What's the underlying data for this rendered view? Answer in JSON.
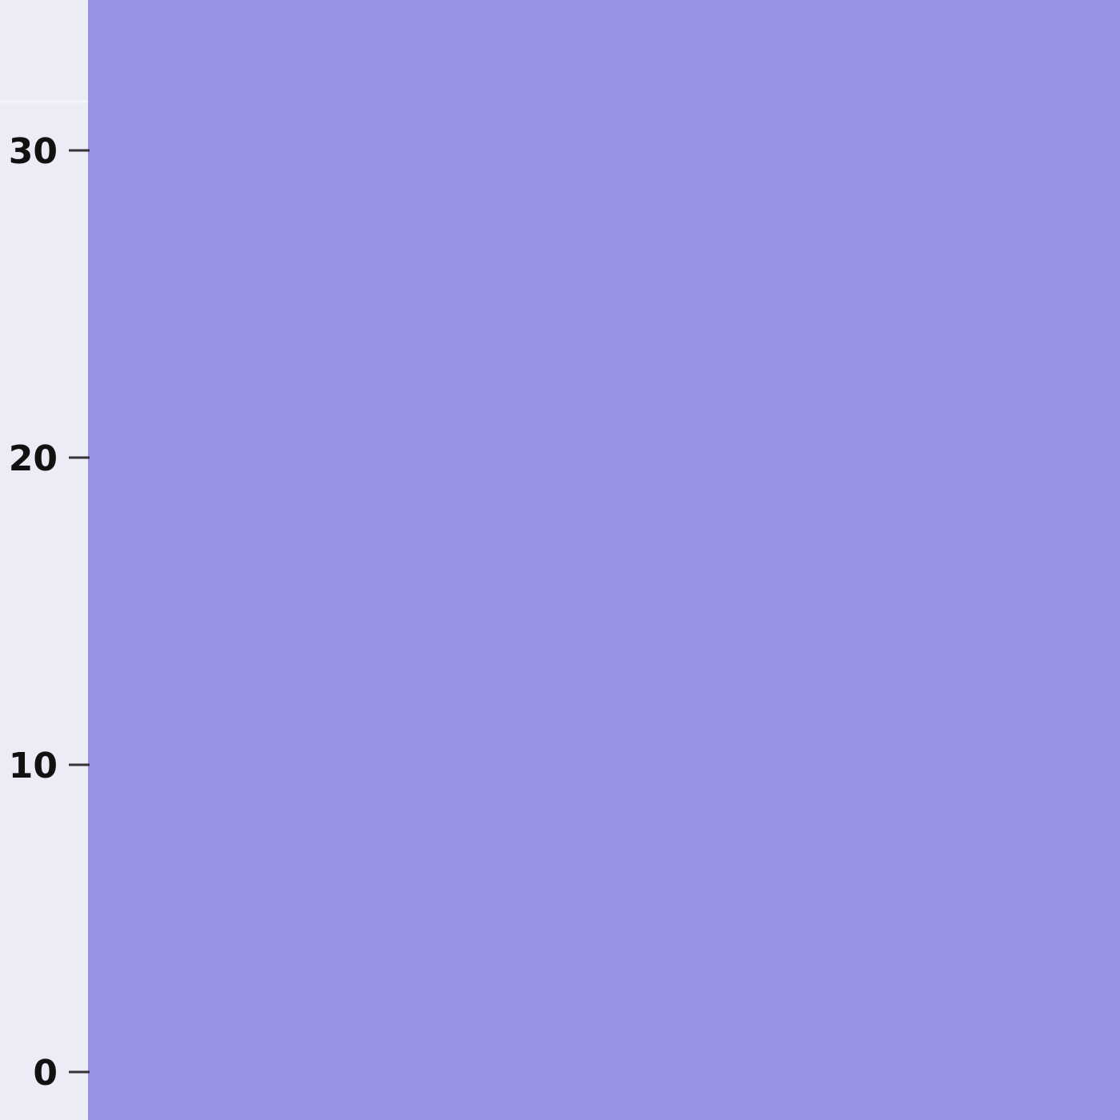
{
  "chart_data": {
    "type": "area",
    "title": "",
    "xlabel": "",
    "ylabel": "",
    "yticks": [
      "0",
      "10",
      "20",
      "30"
    ],
    "ytick_values": [
      0,
      10,
      20,
      30
    ],
    "ylim": [
      -1.5,
      35
    ],
    "series": [
      {
        "values": [
          35,
          35
        ]
      }
    ],
    "grid": false,
    "legend": "none",
    "colors": {
      "fill": "#9792e3",
      "background": "#ececf6",
      "tick": "#333333"
    }
  }
}
